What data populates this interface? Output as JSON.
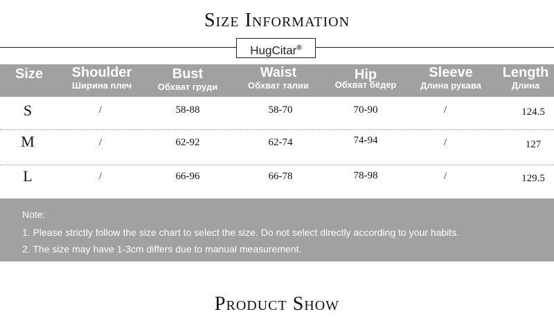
{
  "title": "Size Information",
  "brand": {
    "name": "HugCitar",
    "mark": "®"
  },
  "table": {
    "headers": [
      {
        "en": "Size",
        "ru": ""
      },
      {
        "en": "Shoulder",
        "ru": "Ширина плеч"
      },
      {
        "en": "Bust",
        "ru": "Обхват груди"
      },
      {
        "en": "Waist",
        "ru": "Обхват талии"
      },
      {
        "en": "Hip",
        "ru": "Обхват бёдер"
      },
      {
        "en": "Sleeve",
        "ru": "Длина рукава"
      },
      {
        "en": "Length",
        "ru": "Длина"
      }
    ],
    "rows": [
      [
        "S",
        "/",
        "58-88",
        "58-70",
        "70-90",
        "/",
        "124.5"
      ],
      [
        "M",
        "/",
        "62-92",
        "62-74",
        "74-94",
        "/",
        "127"
      ],
      [
        "L",
        "/",
        "66-96",
        "66-78",
        "78-98",
        "/",
        "129.5"
      ]
    ]
  },
  "note": {
    "label": "Note:",
    "lines": [
      "1. Please strictly follow the size chart to select the size. Do not select directly according to your habits.",
      "2. The size may have 1-3cm differs due to manual measurement."
    ]
  },
  "section2_title": "Product Show"
}
